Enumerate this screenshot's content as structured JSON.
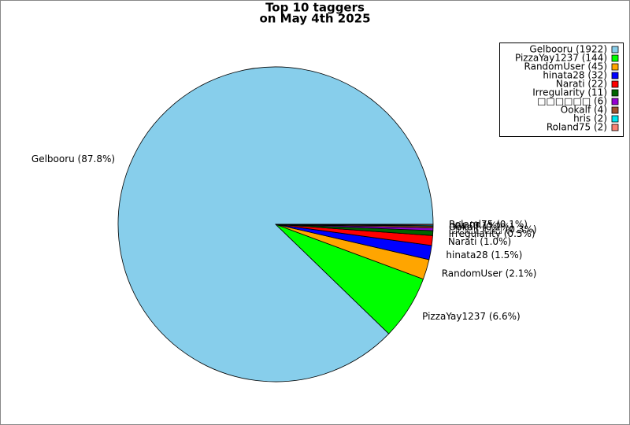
{
  "chart_data": {
    "type": "pie",
    "title": "Top 10 taggers",
    "subtitle": "on May 4th 2025",
    "categories": [
      "Gelbooru (1922)",
      "PizzaYay1237 (144)",
      "RandomUser (45)",
      "hinata28 (32)",
      "Narati (22)",
      "Irregularity (11)",
      "□□□□□□ (6)",
      "Ookalf (4)",
      "hris (2)",
      "Roland75 (2)"
    ],
    "values": [
      1922,
      144,
      45,
      32,
      22,
      11,
      6,
      4,
      2,
      2
    ],
    "slice_labels": [
      "Gelbooru (87.8%)",
      "PizzaYay1237 (6.6%)",
      "RandomUser (2.1%)",
      "hinata28 (1.5%)",
      "Narati (1.0%)",
      "Irregularity (0.5%)",
      "□□□□□□ (0.3%)",
      "Ookalf (0.2%)",
      "hris (0.1%)",
      "Roland75 (0.1%)"
    ],
    "colors": [
      "#87ceeb",
      "#00ff00",
      "#ffa500",
      "#0000ff",
      "#ff0000",
      "#006400",
      "#9400d3",
      "#a0522d",
      "#00e5ee",
      "#fa8072"
    ],
    "legend": "upper right"
  }
}
